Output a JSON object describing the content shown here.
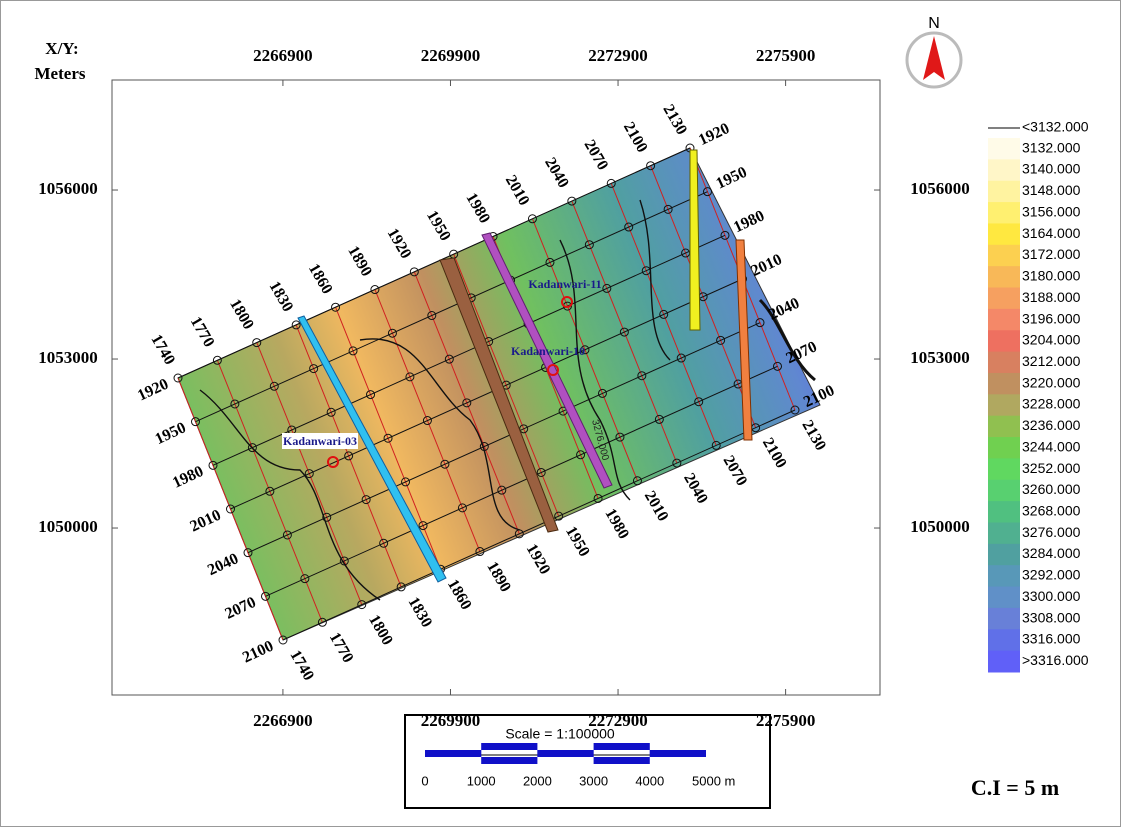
{
  "map": {
    "axis_title": [
      "X/Y:",
      "Meters"
    ],
    "xlim": [
      2263840,
      2277590
    ],
    "ylim": [
      1047036,
      1057953
    ],
    "xticks": [
      2266900,
      2269900,
      2272900,
      2275900
    ],
    "yticks": [
      1050000,
      1053000,
      1056000
    ],
    "top_line_labels": [
      "1740",
      "1770",
      "1800",
      "1830",
      "1860",
      "1890",
      "1920",
      "1950",
      "1980",
      "2010",
      "2040",
      "2070",
      "2100",
      "2130"
    ],
    "bottom_line_labels": [
      "1740",
      "1770",
      "1800",
      "1830",
      "1860",
      "1890",
      "1920",
      "1950",
      "1980",
      "2010",
      "2040",
      "2070",
      "2100",
      "2130"
    ],
    "left_line_labels": [
      "1920",
      "1950",
      "1980",
      "2010",
      "2040",
      "2070",
      "2100"
    ],
    "right_line_labels": [
      "1920",
      "1950",
      "1980",
      "2010",
      "2040",
      "2070",
      "2100"
    ],
    "wells": [
      "Kadanwari-11",
      "Kadanwari-10",
      "Kadanwari-03"
    ],
    "contour_label": "3276.000",
    "north": "N",
    "legend": {
      "below_label": "<3132.000",
      "labels": [
        "3132.000",
        "3140.000",
        "3148.000",
        "3156.000",
        "3164.000",
        "3172.000",
        "3180.000",
        "3188.000",
        "3196.000",
        "3204.000",
        "3212.000",
        "3220.000",
        "3228.000",
        "3236.000",
        "3244.000",
        "3252.000",
        "3260.000",
        "3268.000",
        "3276.000",
        "3284.000",
        "3292.000",
        "3300.000",
        "3308.000",
        "3316.000",
        ">3316.000"
      ],
      "colors": [
        "#fffbe8",
        "#fff6c8",
        "#fff3a0",
        "#fff070",
        "#ffe840",
        "#fcd050",
        "#f8b858",
        "#f6a060",
        "#f48868",
        "#ee7060",
        "#d88060",
        "#c09060",
        "#b0a860",
        "#90c050",
        "#70d050",
        "#60d860",
        "#58d070",
        "#50c080",
        "#50b090",
        "#50a0a0",
        "#5898b8",
        "#6090c8",
        "#6880d8",
        "#6070e8",
        "#6060f8"
      ]
    },
    "scale_bar": {
      "title": "Scale = 1:100000",
      "labels": [
        "0",
        "1000",
        "2000",
        "3000",
        "4000",
        "5000 m"
      ]
    },
    "contour_interval": "C.I = 5 m"
  }
}
